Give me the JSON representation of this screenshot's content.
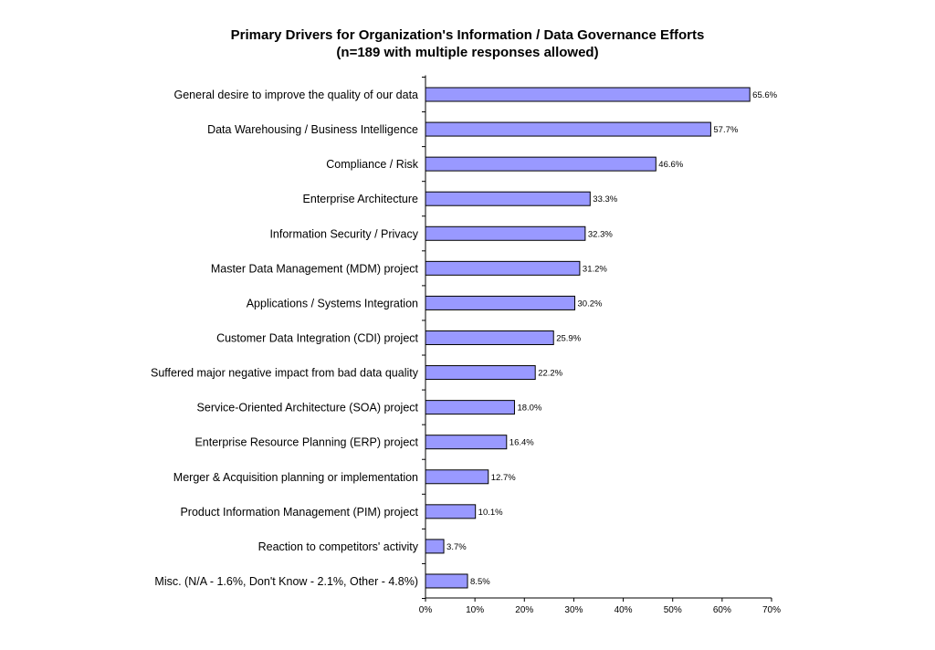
{
  "chart_data": {
    "type": "bar",
    "orientation": "horizontal",
    "title": "Primary Drivers for Organization's Information / Data Governance Efforts",
    "subtitle": "(n=189 with multiple responses allowed)",
    "categories": [
      "General desire to improve the quality of our data",
      "Data Warehousing / Business Intelligence",
      "Compliance / Risk",
      "Enterprise Architecture",
      "Information Security / Privacy",
      "Master Data Management (MDM) project",
      "Applications / Systems Integration",
      "Customer Data Integration (CDI) project",
      "Suffered major negative impact from bad data quality",
      "Service-Oriented Architecture (SOA) project",
      "Enterprise Resource Planning (ERP) project",
      "Merger & Acquisition planning or implementation",
      "Product Information Management (PIM) project",
      "Reaction to competitors' activity",
      "Misc. (N/A - 1.6%, Don't Know - 2.1%, Other - 4.8%)"
    ],
    "values": [
      65.6,
      57.7,
      46.6,
      33.3,
      32.3,
      31.2,
      30.2,
      25.9,
      22.2,
      18.0,
      16.4,
      12.7,
      10.1,
      3.7,
      8.5
    ],
    "value_labels": [
      "65.6%",
      "57.7%",
      "46.6%",
      "33.3%",
      "32.3%",
      "31.2%",
      "30.2%",
      "25.9%",
      "22.2%",
      "18.0%",
      "16.4%",
      "12.7%",
      "10.1%",
      "3.7%",
      "8.5%"
    ],
    "x_ticks": [
      "0%",
      "10%",
      "20%",
      "30%",
      "40%",
      "50%",
      "60%",
      "70%"
    ],
    "xlim": [
      0,
      70
    ],
    "grid": false,
    "legend": "none",
    "bar_color": "#9999ff",
    "bar_edge_color": "#000000"
  }
}
